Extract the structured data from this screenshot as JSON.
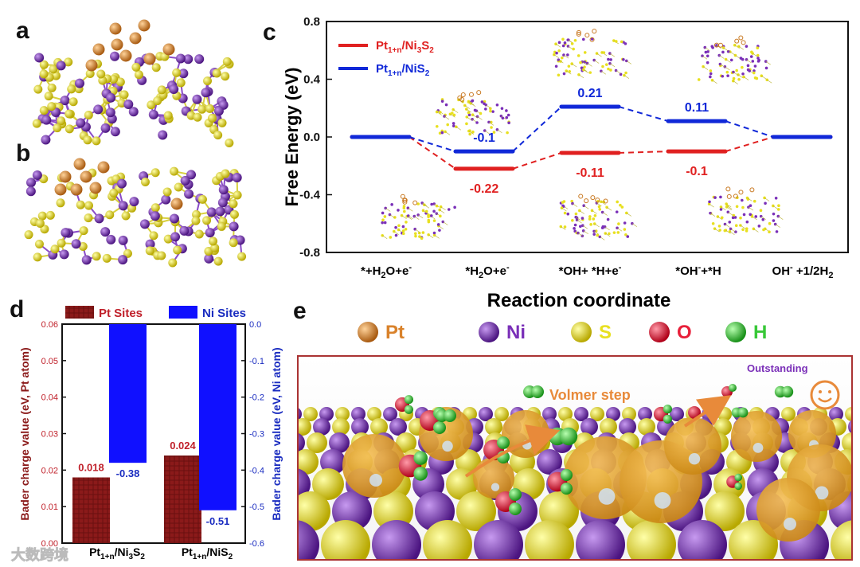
{
  "panels": {
    "a": "a",
    "b": "b",
    "c": "c",
    "d": "d",
    "e": "e"
  },
  "colors": {
    "red": "#e02020",
    "blue": "#1028d8",
    "pt": "#d9822b",
    "ni": "#7a2fb8",
    "s": "#e8e020",
    "o": "#e8203a",
    "h": "#38c838",
    "dark_red": "#8b1a1a"
  },
  "chart_data": [
    {
      "id": "c",
      "type": "line",
      "xlabel": "Reaction coordinate",
      "ylabel": "Free Energy (eV)",
      "ylim": [
        -0.8,
        0.8
      ],
      "yticks": [
        "-0.8",
        "-0.4",
        "0.0",
        "0.4",
        "0.8"
      ],
      "categories": [
        "*+H2O+e-",
        "*H2O+e-",
        "*OH+ *H+e-",
        "*OH-+*H",
        "OH- +1/2H2"
      ],
      "series": [
        {
          "name": "Pt1+n/Ni3S2",
          "color": "#e02020",
          "values": [
            0,
            -0.22,
            -0.11,
            -0.1,
            0
          ],
          "labels": [
            "",
            "-0.22",
            "-0.11",
            "-0.1",
            ""
          ]
        },
        {
          "name": "Pt1+n/NiS2",
          "color": "#1028d8",
          "values": [
            0,
            -0.1,
            0.21,
            0.11,
            0
          ],
          "labels": [
            "",
            "-0.1",
            "0.21",
            "0.11",
            ""
          ]
        }
      ]
    },
    {
      "id": "d",
      "type": "bar",
      "categories": [
        "Pt1+n/Ni3S2",
        "Pt1+n/NiS2"
      ],
      "ylabel_left": "Bader charge value (eV, Pt atom)",
      "ylabel_right": "Bader charge value (eV, Ni atom)",
      "ylim_left": [
        0,
        0.06
      ],
      "yticks_left": [
        "0.00",
        "0.01",
        "0.02",
        "0.03",
        "0.04",
        "0.05",
        "0.06"
      ],
      "ylim_right": [
        -0.6,
        0
      ],
      "yticks_right": [
        "-0.6",
        "-0.5",
        "-0.4",
        "-0.3",
        "-0.2",
        "-0.1",
        "0.0"
      ],
      "series": [
        {
          "name": "Pt  Sites",
          "axis": "left",
          "values": [
            0.018,
            0.024
          ],
          "labels": [
            "0.018",
            "0.024"
          ]
        },
        {
          "name": "Ni Sites",
          "axis": "right",
          "values": [
            -0.38,
            -0.51
          ],
          "labels": [
            "-0.38",
            "-0.51"
          ]
        }
      ]
    }
  ],
  "legend_e": [
    {
      "name": "Pt",
      "color": "#d9822b"
    },
    {
      "name": "Ni",
      "color": "#7a2fb8"
    },
    {
      "name": "S",
      "color": "#e8e020"
    },
    {
      "name": "O",
      "color": "#e8203a"
    },
    {
      "name": "H",
      "color": "#38c838"
    }
  ],
  "scene": {
    "volmer": "Volmer step",
    "outstanding": "Outstanding"
  },
  "watermark": "大数跨境"
}
